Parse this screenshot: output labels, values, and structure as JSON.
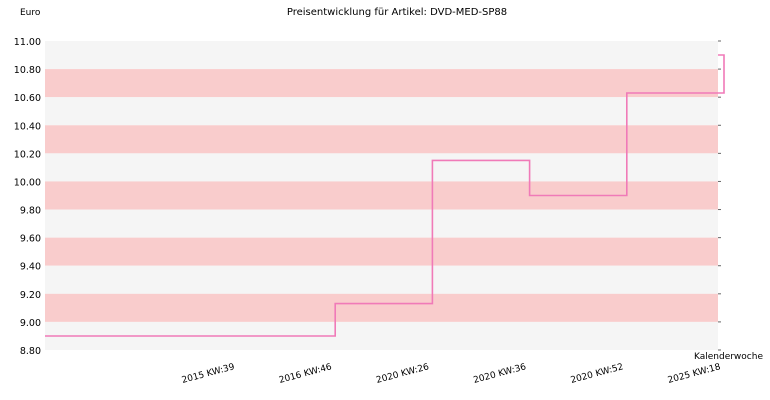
{
  "chart_data": {
    "type": "line",
    "step": true,
    "title": "Preisentwicklung für Artikel: DVD-MED-SP88",
    "ylabel": "Euro",
    "xlabel": "Kalenderwoche",
    "ylim": [
      8.8,
      11.0
    ],
    "yticks": [
      "11.00",
      "10.80",
      "10.60",
      "10.40",
      "10.20",
      "10.00",
      "9.80",
      "9.60",
      "9.40",
      "9.20",
      "9.00",
      "8.80"
    ],
    "xticks": [
      "2015 KW:39",
      "2016 KW:46",
      "2020 KW:26",
      "2020 KW:36",
      "2020 KW:52",
      "2025 KW:18"
    ],
    "series": [
      {
        "x": [
          "start",
          "2015 KW:39",
          "2016 KW:46",
          "2020 KW:26",
          "2020 KW:36",
          "2020 KW:52",
          "2025 KW:18",
          "end"
        ],
        "values": [
          8.9,
          8.9,
          9.13,
          10.15,
          9.9,
          10.63,
          10.9,
          10.9
        ]
      }
    ],
    "grid": true,
    "band_colors": [
      "#f9cccc",
      "#f5f5f5"
    ],
    "line_color": "#f07ab8"
  }
}
